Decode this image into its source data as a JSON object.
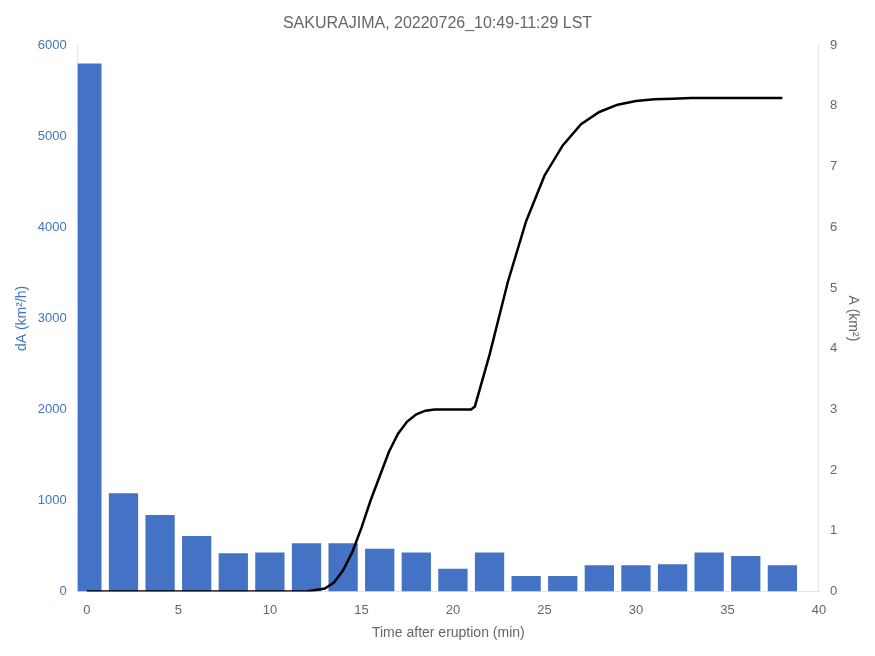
{
  "chart_data": {
    "type": "bar",
    "title": "SAKURAJIMA, 20220726_10:49-11:29 LST",
    "x_label": "Time after eruption (min)",
    "y_label": "dA (km²/h)",
    "y2_label": "A (km²)",
    "xlim": [
      -0.5,
      40
    ],
    "xticks": [
      0,
      5,
      10,
      15,
      20,
      25,
      30,
      35,
      40
    ],
    "ylim": [
      0,
      6000
    ],
    "yticks": [
      0,
      1000,
      2000,
      3000,
      4000,
      5000,
      6000
    ],
    "y2lim": [
      0,
      9
    ],
    "y2ticks": [
      0,
      1,
      2,
      3,
      4,
      5,
      6,
      7,
      8,
      9
    ],
    "grid": false,
    "series": [
      {
        "type": "bar",
        "color": "#4472C4",
        "x": [
          0,
          2,
          4,
          6,
          8,
          10,
          12,
          14,
          16,
          18,
          20,
          22,
          24,
          26,
          28,
          30,
          32,
          34,
          36,
          38
        ],
        "values": [
          5800,
          1080,
          840,
          610,
          420,
          430,
          530,
          530,
          470,
          430,
          250,
          430,
          170,
          170,
          290,
          290,
          300,
          430,
          390,
          290
        ]
      },
      {
        "type": "line",
        "color": "#000000",
        "axis": "y2",
        "x": [
          0,
          1,
          2,
          3,
          4,
          5,
          6,
          7,
          8,
          9,
          10,
          11,
          12,
          13,
          13.5,
          14,
          14.5,
          15,
          15.5,
          16,
          16.5,
          17,
          17.5,
          18,
          18.5,
          19,
          19.5,
          20,
          20.5,
          21,
          21.2,
          22,
          23,
          24,
          25,
          26,
          27,
          28,
          29,
          30,
          31,
          32,
          33,
          34,
          34.5,
          35,
          36,
          37,
          38
        ],
        "values": [
          0,
          0,
          0,
          0,
          0,
          0,
          0,
          0,
          0,
          0,
          0,
          0,
          0,
          0.05,
          0.15,
          0.35,
          0.65,
          1.05,
          1.5,
          1.9,
          2.3,
          2.6,
          2.8,
          2.92,
          2.98,
          3.0,
          3.0,
          3.0,
          3.0,
          3.0,
          3.05,
          3.9,
          5.1,
          6.1,
          6.85,
          7.35,
          7.7,
          7.9,
          8.02,
          8.08,
          8.11,
          8.12,
          8.13,
          8.13,
          8.13,
          8.13,
          8.13,
          8.13,
          8.13
        ]
      }
    ]
  }
}
